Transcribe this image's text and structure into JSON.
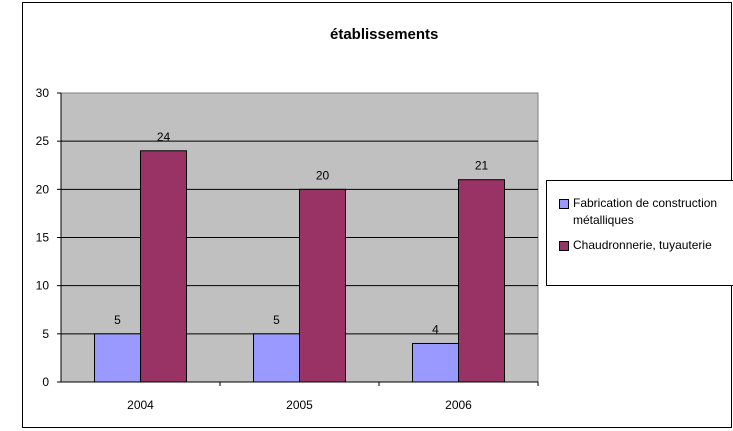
{
  "chart_data": {
    "type": "bar",
    "title": "établissements",
    "categories": [
      "2004",
      "2005",
      "2006"
    ],
    "series": [
      {
        "name": "Fabrication de construction métalliques",
        "values": [
          5,
          5,
          4
        ],
        "color": "#9999FF"
      },
      {
        "name": "Chaudronnerie, tuyauterie",
        "values": [
          24,
          20,
          21
        ],
        "color": "#993366"
      }
    ],
    "ylim": [
      0,
      30
    ],
    "yticks": [
      0,
      5,
      10,
      15,
      20,
      25,
      30
    ],
    "xlabel": "",
    "ylabel": "",
    "grid": true,
    "plot_background": "#C0C0C0",
    "legend_position": "right"
  }
}
